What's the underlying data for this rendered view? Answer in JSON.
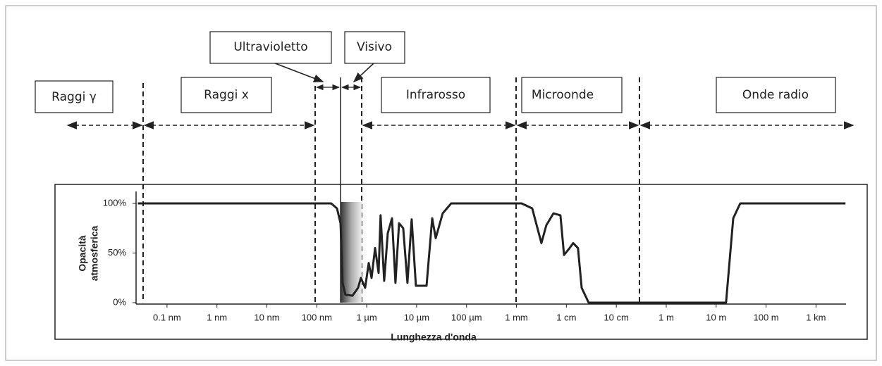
{
  "chart_data": {
    "type": "line",
    "annotations": [
      "Raggi γ",
      "Raggi x",
      "Ultravioletto",
      "Visivo",
      "Infrarosso",
      "Microonde",
      "Onde radio"
    ],
    "xlabel": "Lunghezza d'onda",
    "ylabel": [
      "Opacità",
      "atmosferica"
    ],
    "log_x": true,
    "grid": false,
    "xlim": [
      2.4e-11,
      4000
    ],
    "xticks": [
      {
        "value": 1e-10,
        "label": "0.1 nm"
      },
      {
        "value": 1e-09,
        "label": "1 nm"
      },
      {
        "value": 1e-08,
        "label": "10 nm"
      },
      {
        "value": 1e-07,
        "label": "100 nm"
      },
      {
        "value": 1e-06,
        "label": "1 µm"
      },
      {
        "value": 1e-05,
        "label": "10 µm"
      },
      {
        "value": 0.0001,
        "label": "100 µm"
      },
      {
        "value": 0.001,
        "label": "1 mm"
      },
      {
        "value": 0.01,
        "label": "1 cm"
      },
      {
        "value": 0.1,
        "label": "10 cm"
      },
      {
        "value": 1,
        "label": "1 m"
      },
      {
        "value": 10,
        "label": "10 m"
      },
      {
        "value": 100,
        "label": "100 m"
      },
      {
        "value": 1000,
        "label": "1 km"
      }
    ],
    "ylim": [
      0,
      100
    ],
    "yticks": [
      {
        "value": 0,
        "label": "0%"
      },
      {
        "value": 50,
        "label": "50%"
      },
      {
        "value": 100,
        "label": "100%"
      }
    ],
    "x": [
      2.6e-11,
      1.95e-07,
      2.54e-07,
      2.99e-07,
      3.29e-07,
      3.74e-07,
      5.19e-07,
      6.73e-07,
      7.66e-07,
      9.31e-07,
      1.1e-06,
      1.25e-06,
      1.47e-06,
      1.73e-06,
      1.9e-06,
      2.24e-06,
      2.64e-06,
      3.21e-06,
      3.77e-06,
      4.44e-06,
      5.39e-06,
      6.55e-06,
      7.96e-06,
      9.68e-06,
      1.58e-05,
      2.05e-05,
      2.41e-05,
      3.33e-05,
      4.92e-05,
      0.00127,
      0.00207,
      0.00316,
      0.00397,
      0.0055,
      0.0076,
      0.00896,
      0.0116,
      0.0137,
      0.0171,
      0.0202,
      0.0279,
      15.8,
      22,
      30.4,
      3900
    ],
    "series": [
      {
        "color": "#222222",
        "values": [
          100,
          100,
          95,
          80,
          20,
          8,
          7,
          15,
          25,
          15,
          40,
          25,
          55,
          30,
          88,
          22,
          70,
          85,
          20,
          80,
          75,
          20,
          84,
          17,
          17,
          85,
          65,
          90,
          100,
          100,
          95,
          60,
          78,
          90,
          88,
          48,
          55,
          60,
          55,
          15,
          0,
          0,
          85,
          100,
          100
        ]
      }
    ]
  }
}
